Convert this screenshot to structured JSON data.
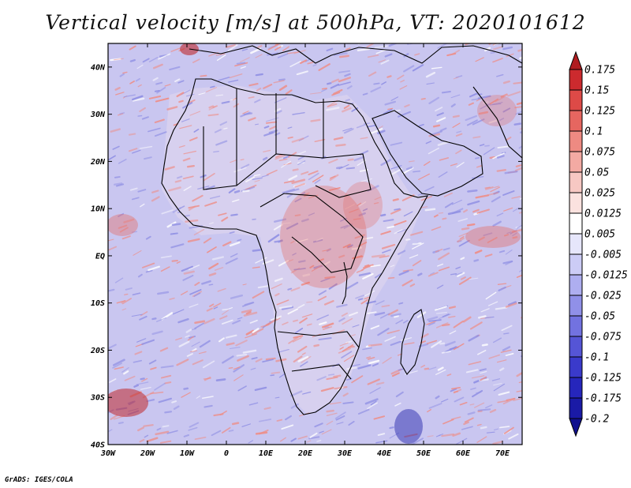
{
  "title": "Vertical velocity [m/s] at 500hPa, VT: 2020101612",
  "credit": "GrADS: IGES/COLA",
  "map": {
    "lon_range": [
      -30,
      75
    ],
    "lat_range": [
      -40,
      45
    ],
    "x_ticks": [
      "30W",
      "20W",
      "10W",
      "0",
      "10E",
      "20E",
      "30E",
      "40E",
      "50E",
      "60E",
      "70E"
    ],
    "y_ticks": [
      "40S",
      "30S",
      "20S",
      "10S",
      "EQ",
      "10N",
      "20N",
      "30N",
      "40N"
    ]
  },
  "colorbar": {
    "labels": [
      "0.175",
      "0.15",
      "0.125",
      "0.1",
      "0.075",
      "0.05",
      "0.025",
      "0.0125",
      "0.005",
      "-0.005",
      "-0.0125",
      "-0.025",
      "-0.05",
      "-0.075",
      "-0.1",
      "-0.125",
      "-0.175",
      "-0.2"
    ],
    "colors": [
      "#b01c20",
      "#cc2a2e",
      "#dd4a47",
      "#e66660",
      "#ee8a82",
      "#f3aaa3",
      "#f7c8c3",
      "#fbe2df",
      "#ffffff",
      "#e6e6fb",
      "#ccccf6",
      "#aeaef0",
      "#9090e8",
      "#7272e0",
      "#5555d6",
      "#3a3acb",
      "#2626bc",
      "#1a1aa6",
      "#10108e"
    ]
  },
  "colors": {
    "ocean_bg": "#c9c6f0",
    "land_bg": "#ddd4ee",
    "red_streak": "#ef8d86",
    "blue_streak": "#8f8fe4",
    "coast": "#000000"
  }
}
